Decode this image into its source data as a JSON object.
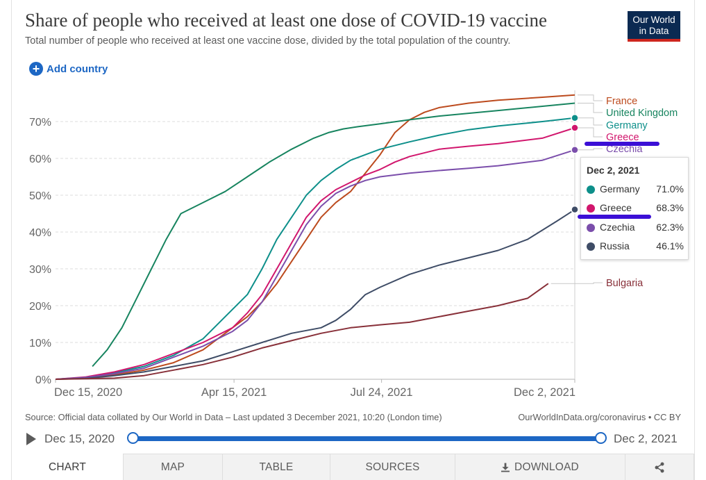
{
  "header": {
    "title": "Share of people who received at least one dose of COVID-19 vaccine",
    "subtitle": "Total number of people who received at least one vaccine dose, divided by the total population of the country.",
    "logo_line1": "Our World",
    "logo_line2": "in Data"
  },
  "controls": {
    "add_country": "Add country"
  },
  "chart_data": {
    "type": "line",
    "title": "Share of people who received at least one dose of COVID-19 vaccine",
    "xlabel": "",
    "ylabel": "",
    "ylim": [
      0,
      75
    ],
    "y_ticks": [
      "0%",
      "10%",
      "20%",
      "30%",
      "40%",
      "50%",
      "60%",
      "70%"
    ],
    "x_ticks": [
      "Dec 15, 2020",
      "Apr 15, 2021",
      "Jul 24, 2021",
      "Dec 2, 2021"
    ],
    "x_tick_days": [
      0,
      121,
      221,
      352
    ],
    "grid": true,
    "legend": "right, labels at line ends",
    "series": [
      {
        "name": "France",
        "color": "#bc4a1d",
        "x": [
          0,
          20,
          40,
          60,
          80,
          100,
          110,
          120,
          130,
          140,
          150,
          160,
          170,
          180,
          190,
          200,
          210,
          220,
          230,
          240,
          250,
          260,
          280,
          300,
          330,
          352
        ],
        "y": [
          0,
          0.3,
          1.2,
          2.5,
          4.5,
          8,
          11,
          14,
          17,
          21,
          26,
          32,
          38,
          44,
          48,
          51,
          56,
          61,
          67,
          70.5,
          72.5,
          73.8,
          75,
          75.8,
          76.6,
          77.2
        ]
      },
      {
        "name": "United Kingdom",
        "color": "#17845f",
        "x": [
          25,
          35,
          45,
          55,
          65,
          75,
          85,
          100,
          115,
          130,
          145,
          160,
          175,
          185,
          195,
          205,
          220,
          240,
          260,
          300,
          352
        ],
        "y": [
          3.5,
          8,
          14,
          22,
          30,
          38,
          45,
          48,
          51,
          55,
          59,
          62.5,
          65.5,
          67,
          68,
          68.6,
          69.4,
          70.5,
          71.5,
          73,
          75
        ]
      },
      {
        "name": "Germany",
        "color": "#0d8f8a",
        "x": [
          0,
          20,
          40,
          60,
          80,
          100,
          120,
          130,
          140,
          150,
          160,
          170,
          180,
          190,
          200,
          210,
          220,
          240,
          260,
          280,
          300,
          330,
          352
        ],
        "y": [
          0,
          0.5,
          1.8,
          3.5,
          6.5,
          11,
          19,
          23,
          30,
          38,
          44,
          50,
          54,
          57,
          59.5,
          61,
          62.5,
          64.5,
          66.3,
          67.8,
          68.8,
          70,
          71
        ]
      },
      {
        "name": "Greece",
        "color": "#d1166d",
        "x": [
          0,
          20,
          40,
          60,
          80,
          100,
          120,
          130,
          140,
          150,
          160,
          170,
          180,
          190,
          200,
          210,
          220,
          230,
          240,
          260,
          280,
          300,
          330,
          352
        ],
        "y": [
          0,
          0.6,
          2,
          4,
          7,
          10,
          14,
          18,
          23,
          30,
          37,
          44,
          48.5,
          51.5,
          53.5,
          55.5,
          57,
          59,
          60.5,
          62.5,
          63.3,
          64,
          65.5,
          68.3
        ]
      },
      {
        "name": "Czechia",
        "color": "#7b4eab",
        "x": [
          0,
          20,
          40,
          60,
          80,
          100,
          120,
          130,
          140,
          150,
          160,
          170,
          180,
          190,
          200,
          210,
          220,
          230,
          240,
          260,
          280,
          300,
          330,
          352
        ],
        "y": [
          0,
          0.5,
          1.5,
          3,
          6,
          9,
          13,
          16,
          21,
          28,
          35,
          42,
          47,
          50.5,
          52.5,
          54,
          55,
          55.5,
          56,
          56.7,
          57.3,
          58,
          59.5,
          62.3
        ]
      },
      {
        "name": "Russia",
        "color": "#3e4c66",
        "x": [
          0,
          20,
          40,
          60,
          80,
          100,
          120,
          140,
          160,
          180,
          190,
          200,
          210,
          220,
          240,
          260,
          280,
          300,
          320,
          340,
          352
        ],
        "y": [
          0,
          0.2,
          1,
          2,
          3.5,
          5,
          7.5,
          10,
          12.5,
          14,
          16,
          19,
          23,
          25,
          28.5,
          31,
          33,
          35,
          38,
          43,
          46.1
        ]
      },
      {
        "name": "Bulgaria",
        "color": "#883039",
        "x": [
          0,
          40,
          60,
          80,
          100,
          120,
          140,
          160,
          180,
          200,
          220,
          240,
          260,
          280,
          300,
          320,
          334
        ],
        "y": [
          0,
          0.3,
          1,
          2.5,
          4,
          6,
          8.5,
          10.5,
          12.5,
          14,
          14.8,
          15.5,
          17,
          18.5,
          20,
          22,
          26
        ]
      }
    ]
  },
  "tooltip": {
    "date": "Dec 2, 2021",
    "rows": [
      {
        "name": "Germany",
        "value": "71.0%",
        "color": "#0d8f8a"
      },
      {
        "name": "Greece",
        "value": "68.3%",
        "color": "#d1166d"
      },
      {
        "name": "Czechia",
        "value": "62.3%",
        "color": "#7b4eab"
      },
      {
        "name": "Russia",
        "value": "46.1%",
        "color": "#3e4c66"
      }
    ]
  },
  "footer": {
    "source": "Source: Official data collated by Our World in Data – Last updated 3 December 2021, 10:20 (London time)",
    "license": "OurWorldInData.org/coronavirus • CC BY"
  },
  "timeline": {
    "start": "Dec 15, 2020",
    "end": "Dec 2, 2021",
    "start_fraction": 0,
    "end_fraction": 1
  },
  "tabs": [
    {
      "label": "CHART",
      "active": true
    },
    {
      "label": "MAP",
      "active": false
    },
    {
      "label": "TABLE",
      "active": false
    },
    {
      "label": "SOURCES",
      "active": false
    },
    {
      "label": "DOWNLOAD",
      "active": false
    },
    {
      "label": "",
      "active": false
    }
  ],
  "colors": {
    "accent": "#1d67c4",
    "annotation": "#3b0fd6",
    "logo_bg": "#0b2a52",
    "logo_bar": "#ce261e"
  }
}
